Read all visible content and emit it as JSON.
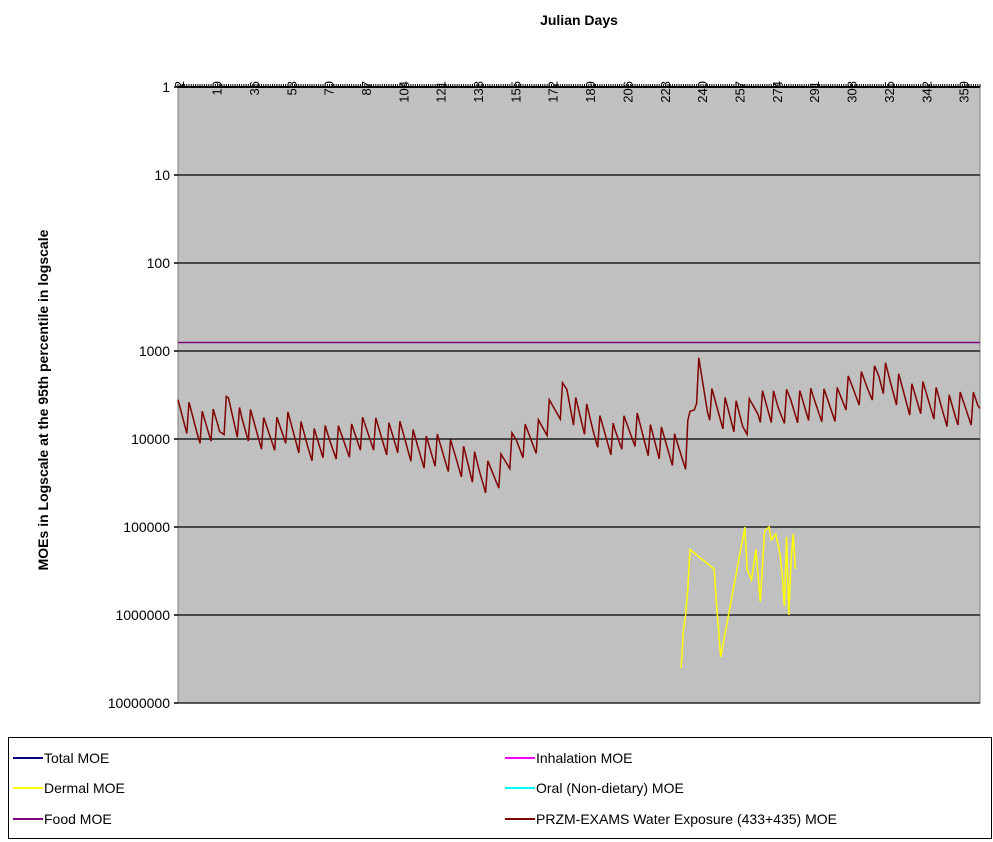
{
  "chart_data": {
    "type": "line",
    "title": "Julian Days",
    "xlabel": "Julian Days",
    "ylabel": "MOEs in Logscale at the 95th percentile in logscale",
    "x_ticks": [
      "2",
      "19",
      "36",
      "53",
      "70",
      "87",
      "104",
      "121",
      "138",
      "155",
      "172",
      "189",
      "206",
      "223",
      "240",
      "257",
      "274",
      "291",
      "308",
      "325",
      "342",
      "359"
    ],
    "y_ticks": [
      "1",
      "10",
      "100",
      "1000",
      "10000",
      "100000",
      "1000000",
      "10000000"
    ],
    "ylim": [
      1,
      10000000
    ],
    "xlim": [
      1,
      366
    ],
    "y_scale": "log",
    "y_reversed": true,
    "x_axis_position": "top",
    "grid": "horizontal",
    "background": "#c0c0c0",
    "legend_position": "bottom",
    "series": [
      {
        "name": "Total MOE",
        "color": "#000080",
        "points": []
      },
      {
        "name": "Dermal MOE",
        "color": "#ffff00",
        "points": [
          [
            230,
            4000000
          ],
          [
            231,
            1500000
          ],
          [
            232,
            1000000
          ],
          [
            233,
            500000
          ],
          [
            234,
            180000
          ],
          [
            245,
            300000
          ],
          [
            246,
            700000
          ],
          [
            248,
            3000000
          ],
          [
            259,
            100000
          ],
          [
            260,
            300000
          ],
          [
            262,
            400000
          ],
          [
            264,
            180000
          ],
          [
            266,
            700000
          ],
          [
            268,
            110000
          ],
          [
            270,
            100000
          ],
          [
            271,
            140000
          ],
          [
            272,
            130000
          ],
          [
            273,
            120000
          ],
          [
            275,
            200000
          ],
          [
            276,
            350000
          ],
          [
            277,
            800000
          ],
          [
            278,
            130000
          ],
          [
            279,
            1000000
          ],
          [
            280,
            250000
          ],
          [
            281,
            120000
          ],
          [
            282,
            300000
          ]
        ]
      },
      {
        "name": "Food MOE",
        "color": "#800080",
        "points": [
          [
            1,
            800
          ],
          [
            366,
            800
          ]
        ]
      },
      {
        "name": "Inhalation MOE",
        "color": "#ff00ff",
        "points": []
      },
      {
        "name": "Oral (Non-dietary) MOE",
        "color": "#00ffff",
        "points": []
      },
      {
        "name": "PRZM-EXAMS Water Exposure (433+435) MOE",
        "color": "#800000",
        "points": [
          [
            1,
            5000
          ],
          [
            10,
            7000
          ],
          [
            20,
            8000
          ],
          [
            24,
            4500
          ],
          [
            30,
            7000
          ],
          [
            40,
            9000
          ],
          [
            50,
            8000
          ],
          [
            60,
            11000
          ],
          [
            70,
            12000
          ],
          [
            80,
            10000
          ],
          [
            90,
            9000
          ],
          [
            100,
            10000
          ],
          [
            110,
            13000
          ],
          [
            120,
            15000
          ],
          [
            130,
            17000
          ],
          [
            138,
            26000
          ],
          [
            142,
            28000
          ],
          [
            148,
            22000
          ],
          [
            155,
            12000
          ],
          [
            165,
            9000
          ],
          [
            170,
            6000
          ],
          [
            175,
            4000
          ],
          [
            178,
            3000
          ],
          [
            182,
            5000
          ],
          [
            190,
            8000
          ],
          [
            200,
            10000
          ],
          [
            210,
            8000
          ],
          [
            220,
            12000
          ],
          [
            228,
            14000
          ],
          [
            232,
            14000
          ],
          [
            234,
            6000
          ],
          [
            236,
            4000
          ],
          [
            238,
            2000
          ],
          [
            242,
            4000
          ],
          [
            250,
            5000
          ],
          [
            258,
            7000
          ],
          [
            265,
            4000
          ],
          [
            274,
            5000
          ],
          [
            280,
            4000
          ],
          [
            290,
            4500
          ],
          [
            300,
            4000
          ],
          [
            308,
            3000
          ],
          [
            315,
            2500
          ],
          [
            320,
            2000
          ],
          [
            325,
            2500
          ],
          [
            335,
            3500
          ],
          [
            345,
            4000
          ],
          [
            355,
            5000
          ],
          [
            366,
            4500
          ]
        ]
      }
    ]
  }
}
